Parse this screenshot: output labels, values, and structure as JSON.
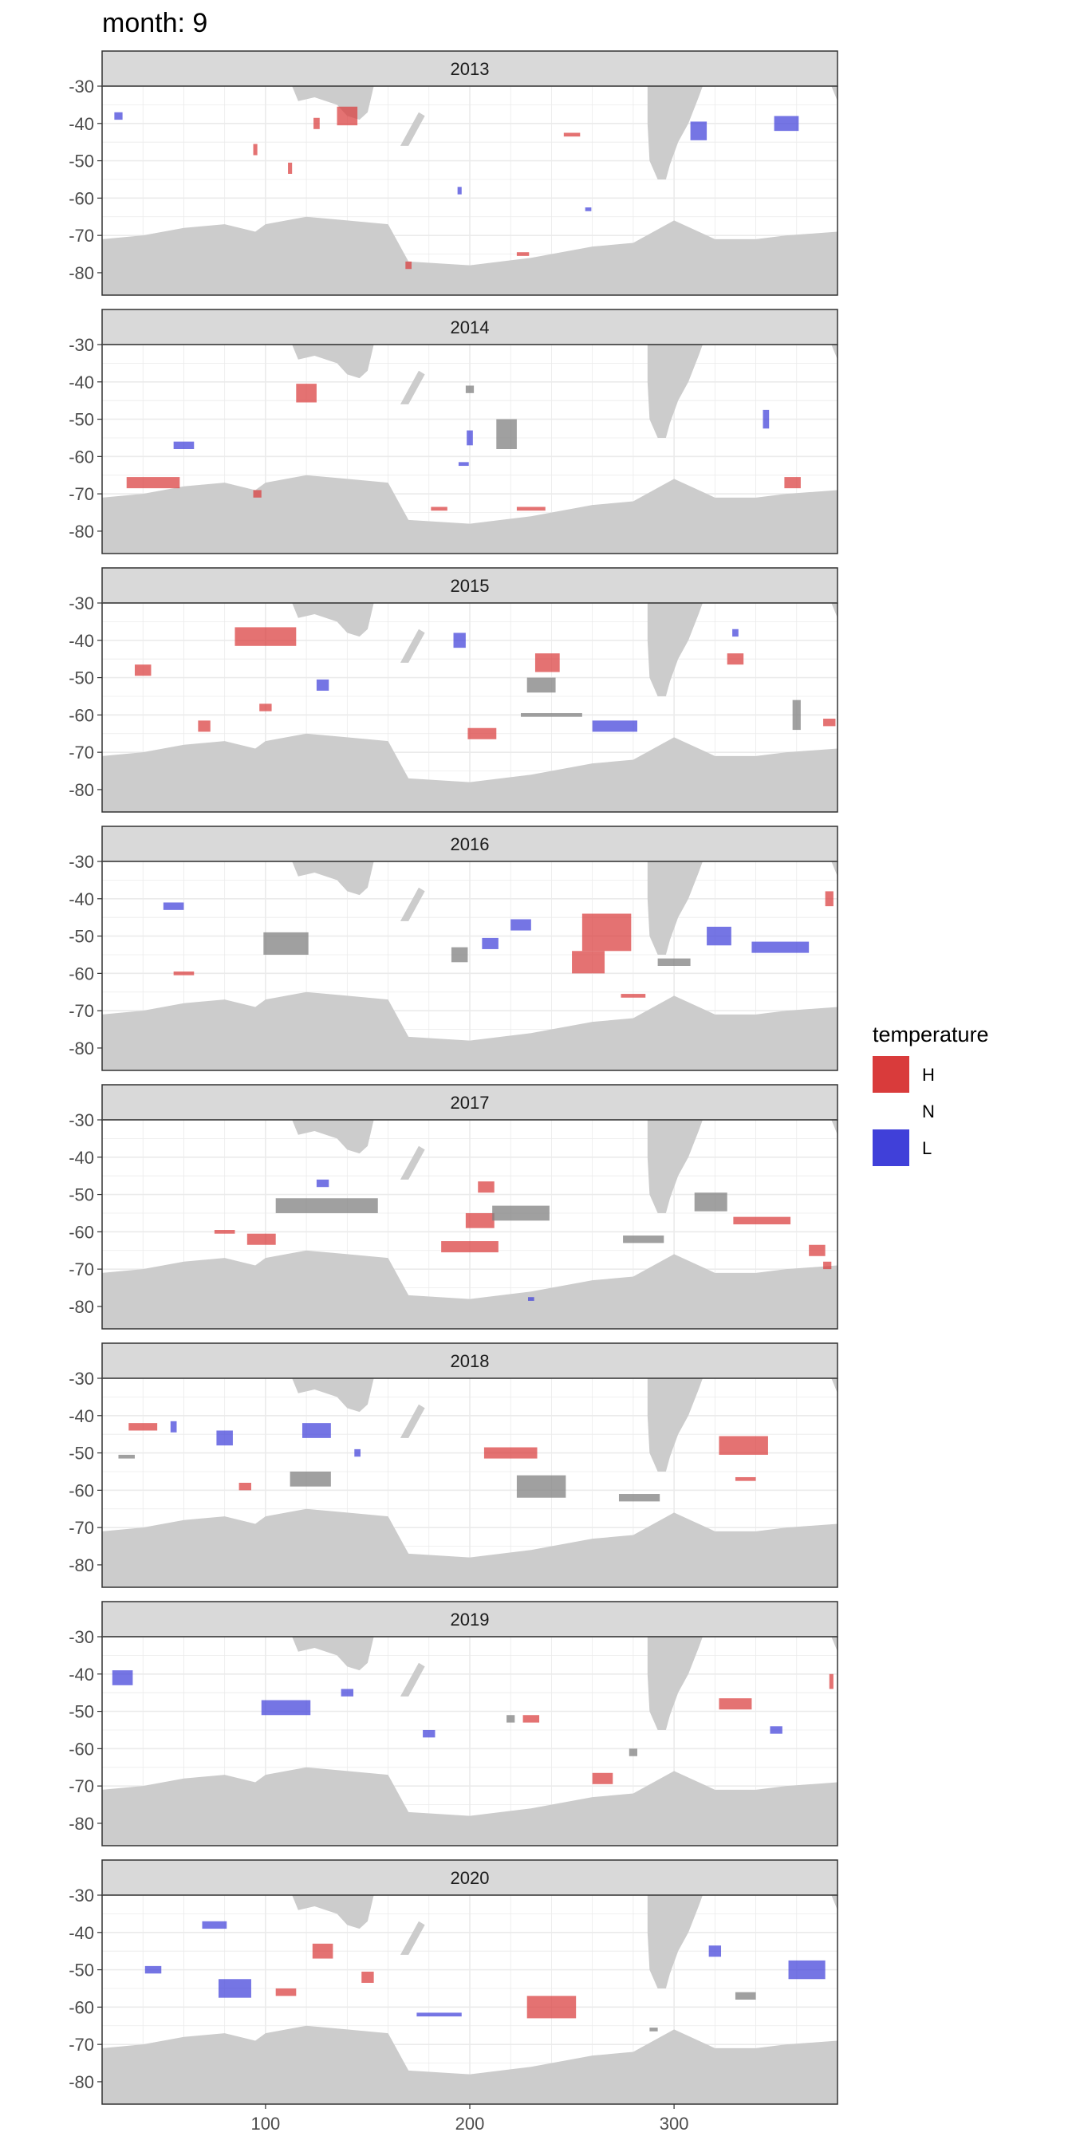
{
  "chart_data": {
    "type": "heatmap",
    "title": "month: 9",
    "xlabel": "",
    "ylabel": "",
    "xlim": [
      20,
      380
    ],
    "ylim": [
      -86,
      -30
    ],
    "x_ticks": [
      100,
      200,
      300
    ],
    "y_ticks": [
      -30,
      -40,
      -50,
      -60,
      -70,
      -80
    ],
    "legend": {
      "title": "temperature",
      "placement": "right",
      "entries": [
        {
          "label": "H",
          "color": "#d93b3b"
        },
        {
          "label": "N",
          "color": "#ffffff"
        },
        {
          "label": "L",
          "color": "#4040d9"
        }
      ]
    },
    "colors": {
      "H": "#d93b3b",
      "L": "#4040d9",
      "N": "#808080",
      "land": "#cccccc",
      "strip": "#d9d9d9",
      "grid": "#ebebeb"
    },
    "panels": [
      {
        "year": "2013",
        "cells": [
          {
            "cat": "H",
            "lon": 140,
            "lat": -38,
            "w": 10,
            "h": 5
          },
          {
            "cat": "H",
            "lon": 125,
            "lat": -40,
            "w": 3,
            "h": 3
          },
          {
            "cat": "H",
            "lon": 170,
            "lat": -78,
            "w": 3,
            "h": 2
          },
          {
            "cat": "H",
            "lon": 250,
            "lat": -43,
            "w": 8,
            "h": 1
          },
          {
            "cat": "H",
            "lon": 226,
            "lat": -75,
            "w": 6,
            "h": 1
          },
          {
            "cat": "H",
            "lon": 95,
            "lat": -47,
            "w": 2,
            "h": 3
          },
          {
            "cat": "H",
            "lon": 112,
            "lat": -52,
            "w": 2,
            "h": 3
          },
          {
            "cat": "L",
            "lon": 28,
            "lat": -38,
            "w": 4,
            "h": 2
          },
          {
            "cat": "L",
            "lon": 312,
            "lat": -42,
            "w": 8,
            "h": 5
          },
          {
            "cat": "L",
            "lon": 355,
            "lat": -40,
            "w": 12,
            "h": 4
          },
          {
            "cat": "L",
            "lon": 258,
            "lat": -63,
            "w": 3,
            "h": 1
          },
          {
            "cat": "L",
            "lon": 195,
            "lat": -58,
            "w": 2,
            "h": 2
          }
        ]
      },
      {
        "year": "2014",
        "cells": [
          {
            "cat": "H",
            "lon": 45,
            "lat": -67,
            "w": 26,
            "h": 3
          },
          {
            "cat": "H",
            "lon": 185,
            "lat": -74,
            "w": 8,
            "h": 1
          },
          {
            "cat": "H",
            "lon": 230,
            "lat": -74,
            "w": 14,
            "h": 1
          },
          {
            "cat": "H",
            "lon": 120,
            "lat": -43,
            "w": 10,
            "h": 5
          },
          {
            "cat": "H",
            "lon": 358,
            "lat": -67,
            "w": 8,
            "h": 3
          },
          {
            "cat": "H",
            "lon": 96,
            "lat": -70,
            "w": 4,
            "h": 2
          },
          {
            "cat": "L",
            "lon": 60,
            "lat": -57,
            "w": 10,
            "h": 2
          },
          {
            "cat": "L",
            "lon": 200,
            "lat": -55,
            "w": 3,
            "h": 4
          },
          {
            "cat": "L",
            "lon": 345,
            "lat": -50,
            "w": 3,
            "h": 5
          },
          {
            "cat": "L",
            "lon": 197,
            "lat": -62,
            "w": 5,
            "h": 1
          },
          {
            "cat": "N",
            "lon": 218,
            "lat": -54,
            "w": 10,
            "h": 8
          },
          {
            "cat": "N",
            "lon": 200,
            "lat": -42,
            "w": 4,
            "h": 2
          }
        ]
      },
      {
        "year": "2015",
        "cells": [
          {
            "cat": "H",
            "lon": 100,
            "lat": -39,
            "w": 30,
            "h": 5
          },
          {
            "cat": "H",
            "lon": 206,
            "lat": -65,
            "w": 14,
            "h": 3
          },
          {
            "cat": "H",
            "lon": 238,
            "lat": -46,
            "w": 12,
            "h": 5
          },
          {
            "cat": "H",
            "lon": 70,
            "lat": -63,
            "w": 6,
            "h": 3
          },
          {
            "cat": "H",
            "lon": 100,
            "lat": -58,
            "w": 6,
            "h": 2
          },
          {
            "cat": "H",
            "lon": 40,
            "lat": -48,
            "w": 8,
            "h": 3
          },
          {
            "cat": "H",
            "lon": 376,
            "lat": -62,
            "w": 6,
            "h": 2
          },
          {
            "cat": "H",
            "lon": 330,
            "lat": -45,
            "w": 8,
            "h": 3
          },
          {
            "cat": "L",
            "lon": 271,
            "lat": -63,
            "w": 22,
            "h": 3
          },
          {
            "cat": "L",
            "lon": 330,
            "lat": -38,
            "w": 3,
            "h": 2
          },
          {
            "cat": "L",
            "lon": 195,
            "lat": -40,
            "w": 6,
            "h": 4
          },
          {
            "cat": "L",
            "lon": 128,
            "lat": -52,
            "w": 6,
            "h": 3
          },
          {
            "cat": "N",
            "lon": 235,
            "lat": -52,
            "w": 14,
            "h": 4
          },
          {
            "cat": "N",
            "lon": 240,
            "lat": -60,
            "w": 30,
            "h": 1
          },
          {
            "cat": "N",
            "lon": 360,
            "lat": -60,
            "w": 4,
            "h": 8
          }
        ]
      },
      {
        "year": "2016",
        "cells": [
          {
            "cat": "H",
            "lon": 267,
            "lat": -49,
            "w": 24,
            "h": 10
          },
          {
            "cat": "H",
            "lon": 258,
            "lat": -57,
            "w": 16,
            "h": 6
          },
          {
            "cat": "H",
            "lon": 280,
            "lat": -66,
            "w": 12,
            "h": 1
          },
          {
            "cat": "H",
            "lon": 376,
            "lat": -40,
            "w": 4,
            "h": 4
          },
          {
            "cat": "H",
            "lon": 60,
            "lat": -60,
            "w": 10,
            "h": 1
          },
          {
            "cat": "L",
            "lon": 225,
            "lat": -47,
            "w": 10,
            "h": 3
          },
          {
            "cat": "L",
            "lon": 352,
            "lat": -53,
            "w": 28,
            "h": 3
          },
          {
            "cat": "L",
            "lon": 322,
            "lat": -50,
            "w": 12,
            "h": 5
          },
          {
            "cat": "L",
            "lon": 210,
            "lat": -52,
            "w": 8,
            "h": 3
          },
          {
            "cat": "L",
            "lon": 55,
            "lat": -42,
            "w": 10,
            "h": 2
          },
          {
            "cat": "N",
            "lon": 110,
            "lat": -52,
            "w": 22,
            "h": 6
          },
          {
            "cat": "N",
            "lon": 300,
            "lat": -57,
            "w": 16,
            "h": 2
          },
          {
            "cat": "N",
            "lon": 195,
            "lat": -55,
            "w": 8,
            "h": 4
          }
        ]
      },
      {
        "year": "2017",
        "cells": [
          {
            "cat": "H",
            "lon": 200,
            "lat": -64,
            "w": 28,
            "h": 3
          },
          {
            "cat": "H",
            "lon": 205,
            "lat": -57,
            "w": 14,
            "h": 4
          },
          {
            "cat": "H",
            "lon": 343,
            "lat": -57,
            "w": 28,
            "h": 2
          },
          {
            "cat": "H",
            "lon": 98,
            "lat": -62,
            "w": 14,
            "h": 3
          },
          {
            "cat": "H",
            "lon": 80,
            "lat": -60,
            "w": 10,
            "h": 1
          },
          {
            "cat": "H",
            "lon": 370,
            "lat": -65,
            "w": 8,
            "h": 3
          },
          {
            "cat": "H",
            "lon": 375,
            "lat": -69,
            "w": 4,
            "h": 2
          },
          {
            "cat": "H",
            "lon": 208,
            "lat": -48,
            "w": 8,
            "h": 3
          },
          {
            "cat": "N",
            "lon": 130,
            "lat": -53,
            "w": 50,
            "h": 4
          },
          {
            "cat": "N",
            "lon": 225,
            "lat": -55,
            "w": 28,
            "h": 4
          },
          {
            "cat": "N",
            "lon": 318,
            "lat": -52,
            "w": 16,
            "h": 5
          },
          {
            "cat": "N",
            "lon": 285,
            "lat": -62,
            "w": 20,
            "h": 2
          },
          {
            "cat": "L",
            "lon": 128,
            "lat": -47,
            "w": 6,
            "h": 2
          },
          {
            "cat": "L",
            "lon": 230,
            "lat": -78,
            "w": 3,
            "h": 1
          }
        ]
      },
      {
        "year": "2018",
        "cells": [
          {
            "cat": "H",
            "lon": 334,
            "lat": -48,
            "w": 24,
            "h": 5
          },
          {
            "cat": "H",
            "lon": 220,
            "lat": -50,
            "w": 26,
            "h": 3
          },
          {
            "cat": "H",
            "lon": 40,
            "lat": -43,
            "w": 14,
            "h": 2
          },
          {
            "cat": "H",
            "lon": 335,
            "lat": -57,
            "w": 10,
            "h": 1
          },
          {
            "cat": "H",
            "lon": 90,
            "lat": -59,
            "w": 6,
            "h": 2
          },
          {
            "cat": "L",
            "lon": 80,
            "lat": -46,
            "w": 8,
            "h": 4
          },
          {
            "cat": "L",
            "lon": 125,
            "lat": -44,
            "w": 14,
            "h": 4
          },
          {
            "cat": "L",
            "lon": 55,
            "lat": -43,
            "w": 3,
            "h": 3
          },
          {
            "cat": "L",
            "lon": 145,
            "lat": -50,
            "w": 3,
            "h": 2
          },
          {
            "cat": "N",
            "lon": 122,
            "lat": -57,
            "w": 20,
            "h": 4
          },
          {
            "cat": "N",
            "lon": 235,
            "lat": -59,
            "w": 24,
            "h": 6
          },
          {
            "cat": "N",
            "lon": 283,
            "lat": -62,
            "w": 20,
            "h": 2
          },
          {
            "cat": "N",
            "lon": 32,
            "lat": -51,
            "w": 8,
            "h": 1
          }
        ]
      },
      {
        "year": "2019",
        "cells": [
          {
            "cat": "H",
            "lon": 265,
            "lat": -68,
            "w": 10,
            "h": 3
          },
          {
            "cat": "H",
            "lon": 330,
            "lat": -48,
            "w": 16,
            "h": 3
          },
          {
            "cat": "H",
            "lon": 230,
            "lat": -52,
            "w": 8,
            "h": 2
          },
          {
            "cat": "H",
            "lon": 377,
            "lat": -42,
            "w": 2,
            "h": 4
          },
          {
            "cat": "L",
            "lon": 110,
            "lat": -49,
            "w": 24,
            "h": 4
          },
          {
            "cat": "L",
            "lon": 30,
            "lat": -41,
            "w": 10,
            "h": 4
          },
          {
            "cat": "L",
            "lon": 180,
            "lat": -56,
            "w": 6,
            "h": 2
          },
          {
            "cat": "L",
            "lon": 350,
            "lat": -55,
            "w": 6,
            "h": 2
          },
          {
            "cat": "L",
            "lon": 140,
            "lat": -45,
            "w": 6,
            "h": 2
          },
          {
            "cat": "N",
            "lon": 280,
            "lat": -61,
            "w": 4,
            "h": 2
          },
          {
            "cat": "N",
            "lon": 220,
            "lat": -52,
            "w": 4,
            "h": 2
          }
        ]
      },
      {
        "year": "2020",
        "cells": [
          {
            "cat": "L",
            "lon": 85,
            "lat": -55,
            "w": 16,
            "h": 5
          },
          {
            "cat": "L",
            "lon": 75,
            "lat": -38,
            "w": 12,
            "h": 2
          },
          {
            "cat": "L",
            "lon": 45,
            "lat": -50,
            "w": 8,
            "h": 2
          },
          {
            "cat": "L",
            "lon": 185,
            "lat": -62,
            "w": 22,
            "h": 1
          },
          {
            "cat": "L",
            "lon": 365,
            "lat": -50,
            "w": 18,
            "h": 5
          },
          {
            "cat": "L",
            "lon": 320,
            "lat": -45,
            "w": 6,
            "h": 3
          },
          {
            "cat": "H",
            "lon": 240,
            "lat": -60,
            "w": 24,
            "h": 6
          },
          {
            "cat": "H",
            "lon": 128,
            "lat": -45,
            "w": 10,
            "h": 4
          },
          {
            "cat": "H",
            "lon": 110,
            "lat": -56,
            "w": 10,
            "h": 2
          },
          {
            "cat": "H",
            "lon": 150,
            "lat": -52,
            "w": 6,
            "h": 3
          },
          {
            "cat": "N",
            "lon": 335,
            "lat": -57,
            "w": 10,
            "h": 2
          },
          {
            "cat": "N",
            "lon": 290,
            "lat": -66,
            "w": 4,
            "h": 1
          }
        ]
      }
    ]
  }
}
